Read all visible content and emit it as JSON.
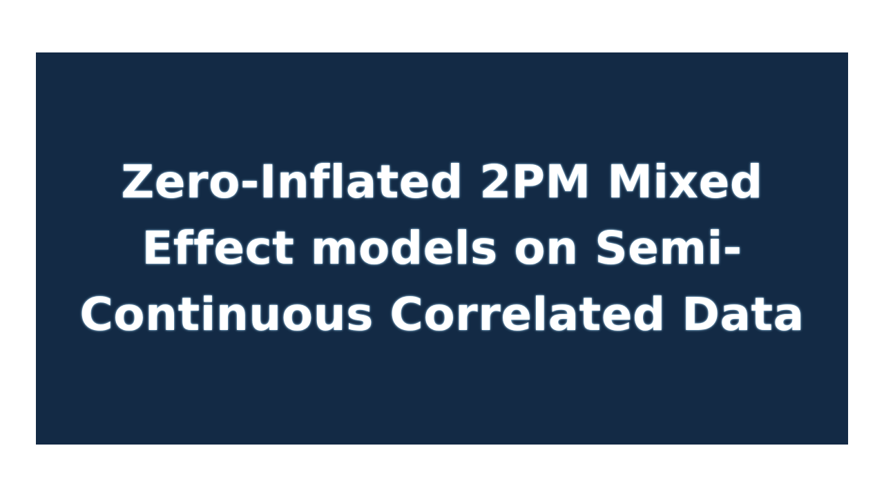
{
  "banner": {
    "background_color": "#132a45",
    "text_color": "#ffffff",
    "title_lines": [
      "Zero-Inflated 2PM Mixed",
      "Effect models on Semi-",
      "Continuous Correlated Data"
    ]
  }
}
